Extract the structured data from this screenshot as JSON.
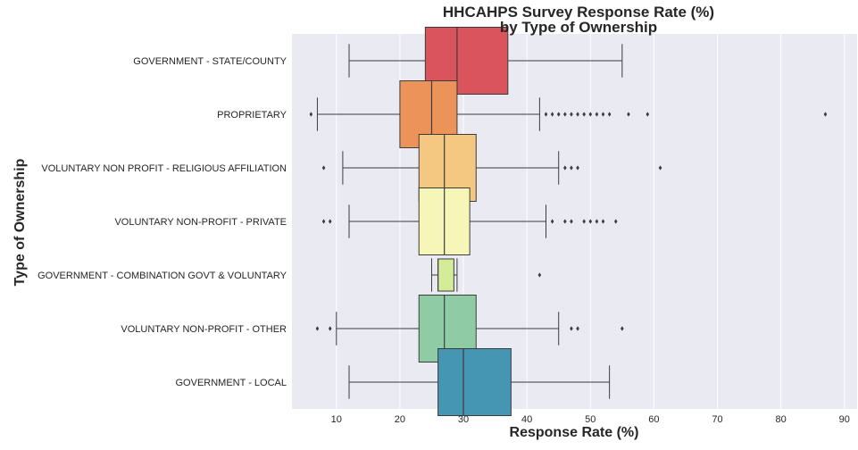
{
  "chart_data": {
    "type": "boxplot",
    "orientation": "horizontal",
    "title": "HHCAHPS Survey Response Rate (%)",
    "subtitle": "by Type of Ownership",
    "xlabel": "Response Rate (%)",
    "ylabel": "Type of Ownership",
    "xlim": [
      3,
      92
    ],
    "xticks": [
      10,
      20,
      30,
      40,
      50,
      60,
      70,
      80,
      90
    ],
    "grid": true,
    "legend": "none",
    "background": "#eaeaf2",
    "box_stroke": "#3c3c3c",
    "series": [
      {
        "category": "GOVERNMENT - STATE/COUNTY",
        "color": "#d9545c",
        "whisker_low": 12,
        "q1": 24,
        "median": 29,
        "q3": 37,
        "whisker_high": 55,
        "outliers": []
      },
      {
        "category": "PROPRIETARY",
        "color": "#ec9359",
        "whisker_low": 7,
        "q1": 20,
        "median": 25,
        "q3": 29,
        "whisker_high": 42,
        "outliers": [
          6,
          43,
          44,
          45,
          46,
          47,
          48,
          49,
          50,
          51,
          52,
          53,
          56,
          59,
          87
        ]
      },
      {
        "category": "VOLUNTARY NON PROFIT - RELIGIOUS AFFILIATION",
        "color": "#f4c880",
        "whisker_low": 11,
        "q1": 23,
        "median": 27,
        "q3": 32,
        "whisker_high": 45,
        "outliers": [
          8,
          46,
          47,
          48,
          61
        ]
      },
      {
        "category": "VOLUNTARY NON-PROFIT - PRIVATE",
        "color": "#f6f6b9",
        "whisker_low": 12,
        "q1": 23,
        "median": 27,
        "q3": 31,
        "whisker_high": 43,
        "outliers": [
          8,
          9,
          44,
          46,
          47,
          49,
          50,
          51,
          52,
          54
        ]
      },
      {
        "category": "GOVERNMENT - COMBINATION GOVT & VOLUNTARY",
        "color": "#d4eb9a",
        "whisker_low": 25,
        "q1": 26,
        "median": 26,
        "q3": 28.5,
        "whisker_high": 29,
        "outliers": [
          42
        ]
      },
      {
        "category": "VOLUNTARY NON-PROFIT - OTHER",
        "color": "#8fcca5",
        "whisker_low": 10,
        "q1": 23,
        "median": 27,
        "q3": 32,
        "whisker_high": 45,
        "outliers": [
          7,
          9,
          47,
          48,
          55
        ]
      },
      {
        "category": "GOVERNMENT - LOCAL",
        "color": "#4596b2",
        "whisker_low": 12,
        "q1": 26,
        "median": 30,
        "q3": 37.5,
        "whisker_high": 53,
        "outliers": []
      }
    ]
  }
}
